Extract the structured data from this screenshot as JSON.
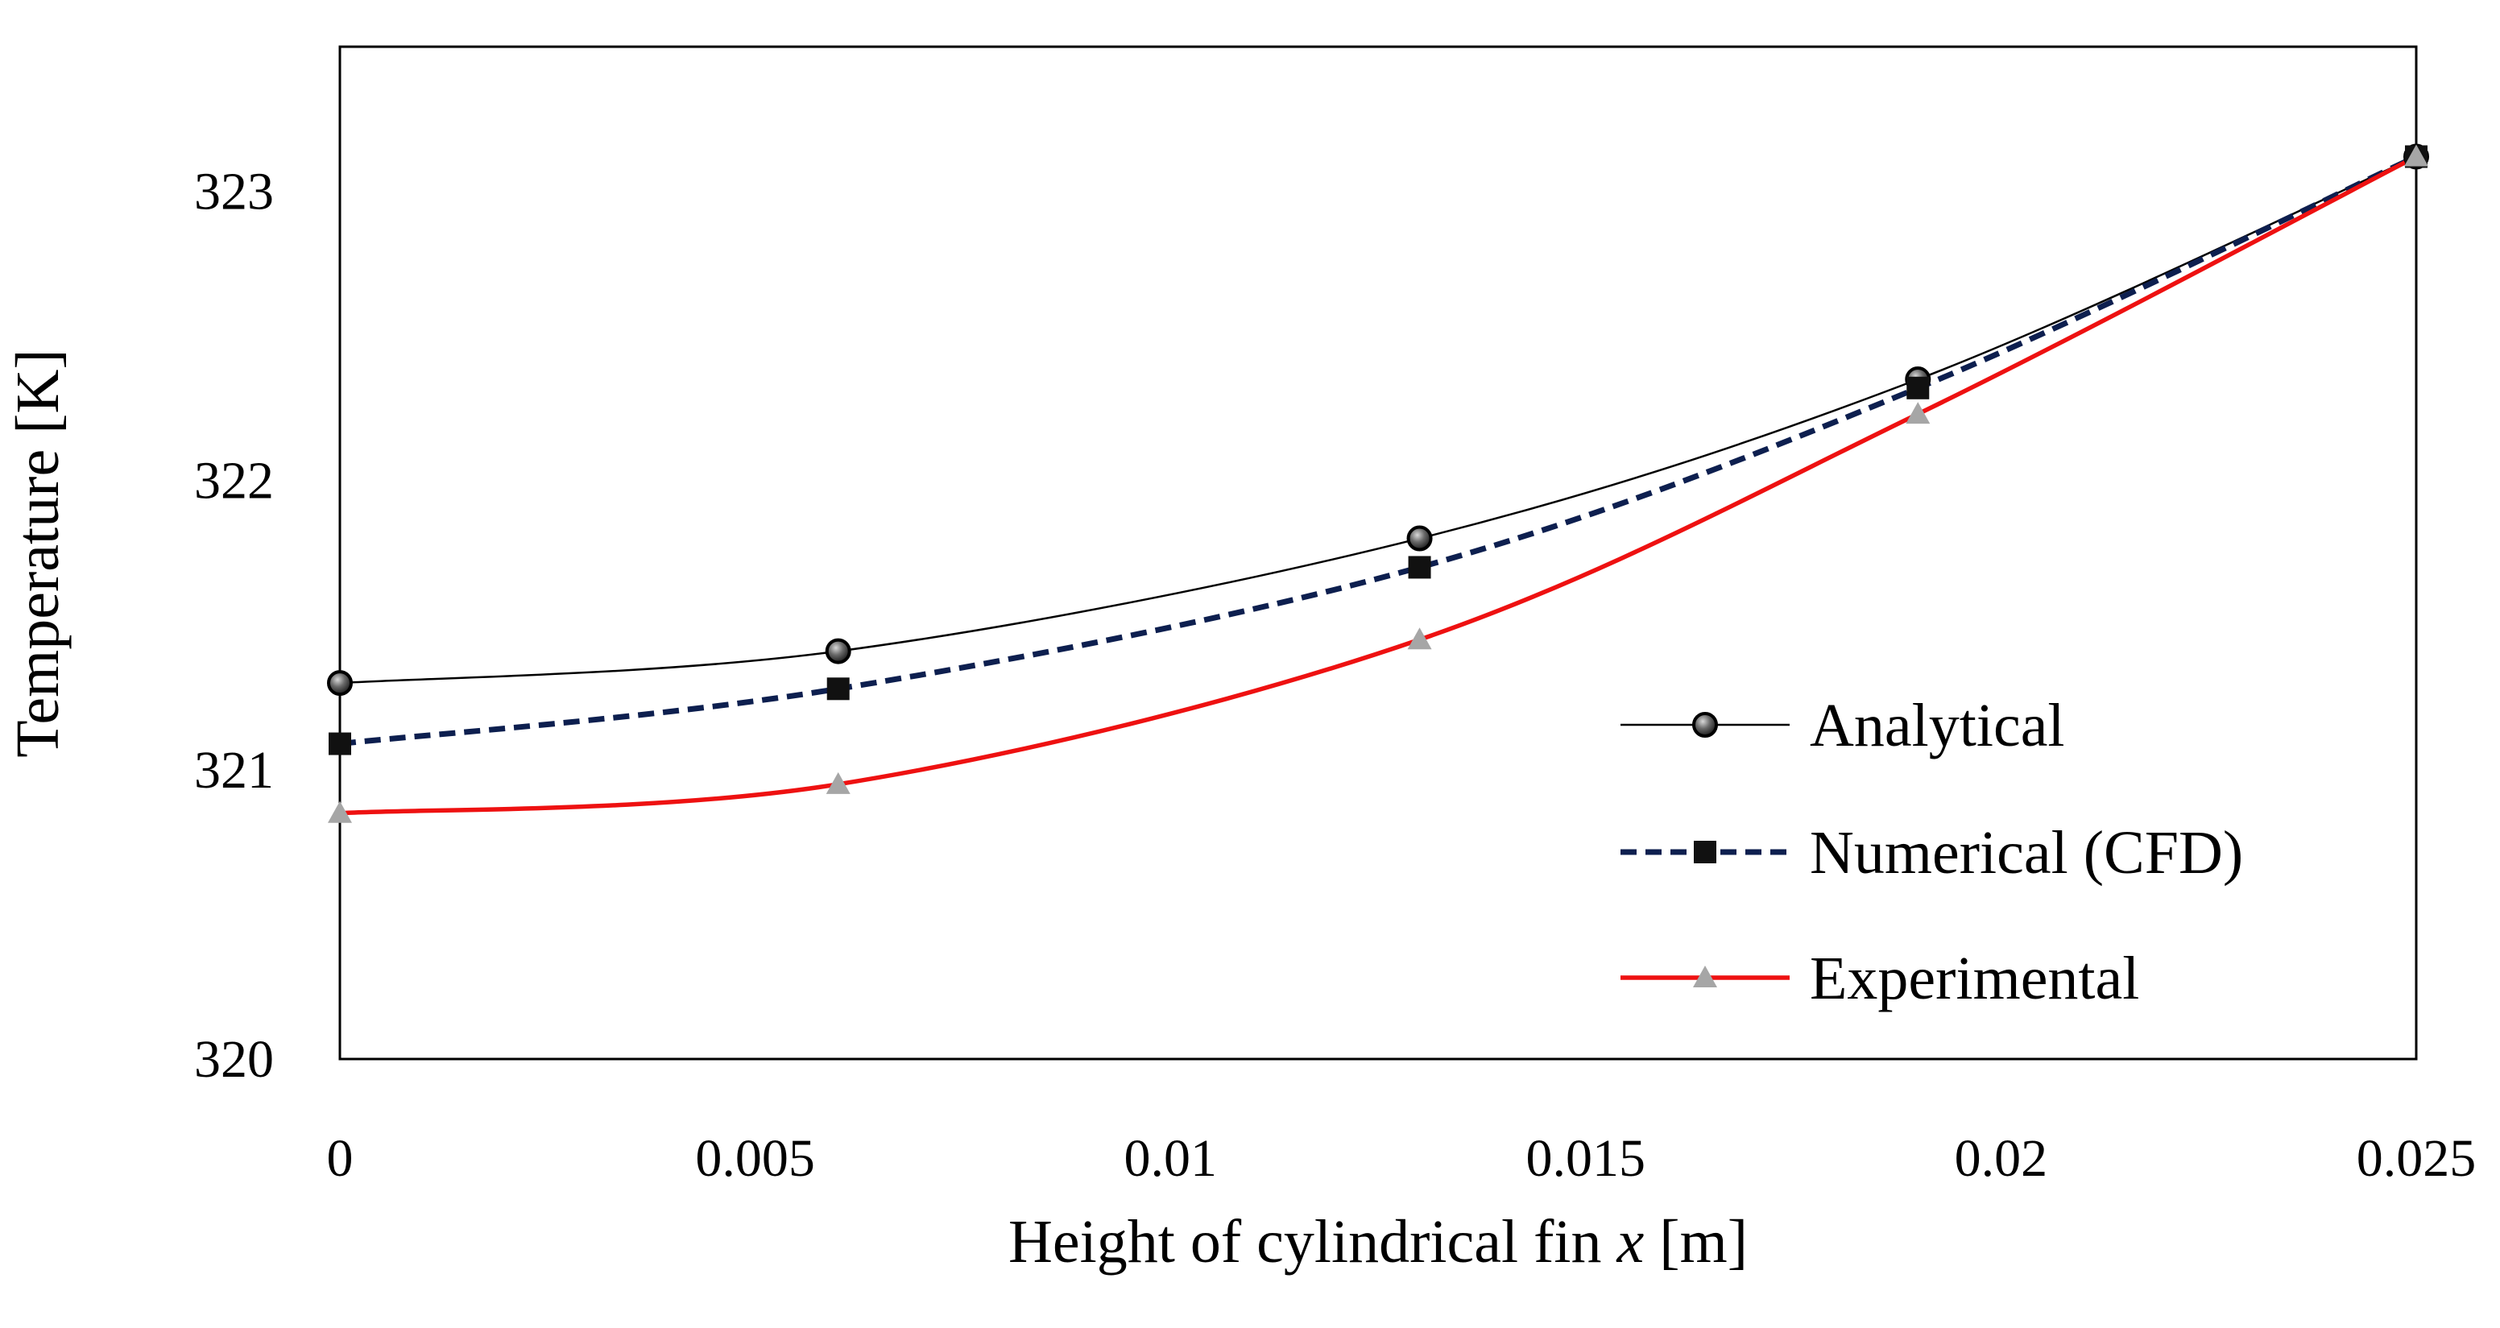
{
  "chart_data": {
    "type": "line",
    "title": "",
    "xlabel_prefix": "Height of cylindrical fin ",
    "xlabel_var": "x",
    "xlabel_suffix": " [m]",
    "ylabel": "Temperature [K]",
    "xlim": [
      0,
      0.025
    ],
    "ylim": [
      320,
      323.5
    ],
    "x_ticks": [
      0,
      0.005,
      0.01,
      0.015,
      0.02,
      0.025
    ],
    "x_tick_labels": [
      "0",
      "0.005",
      "0.01",
      "0.015",
      "0.02",
      "0.025"
    ],
    "y_ticks": [
      320,
      321,
      322,
      323
    ],
    "y_tick_labels": [
      "320",
      "321",
      "322",
      "323"
    ],
    "grid": false,
    "legend_position": "bottom-right",
    "x": [
      0,
      0.006,
      0.013,
      0.019,
      0.025
    ],
    "series": [
      {
        "name": "Analytical",
        "values": [
          321.3,
          321.41,
          321.8,
          322.35,
          323.12
        ],
        "color": "#000000",
        "line_style": "solid",
        "marker": "circle"
      },
      {
        "name": "Numerical (CFD)",
        "values": [
          321.09,
          321.28,
          321.7,
          322.32,
          323.12
        ],
        "color": "#0d1f4f",
        "line_style": "dashed",
        "marker": "square"
      },
      {
        "name": "Experimental",
        "values": [
          320.85,
          320.95,
          321.45,
          322.23,
          323.12
        ],
        "color": "#ee1111",
        "line_style": "solid",
        "marker": "triangle"
      }
    ]
  }
}
